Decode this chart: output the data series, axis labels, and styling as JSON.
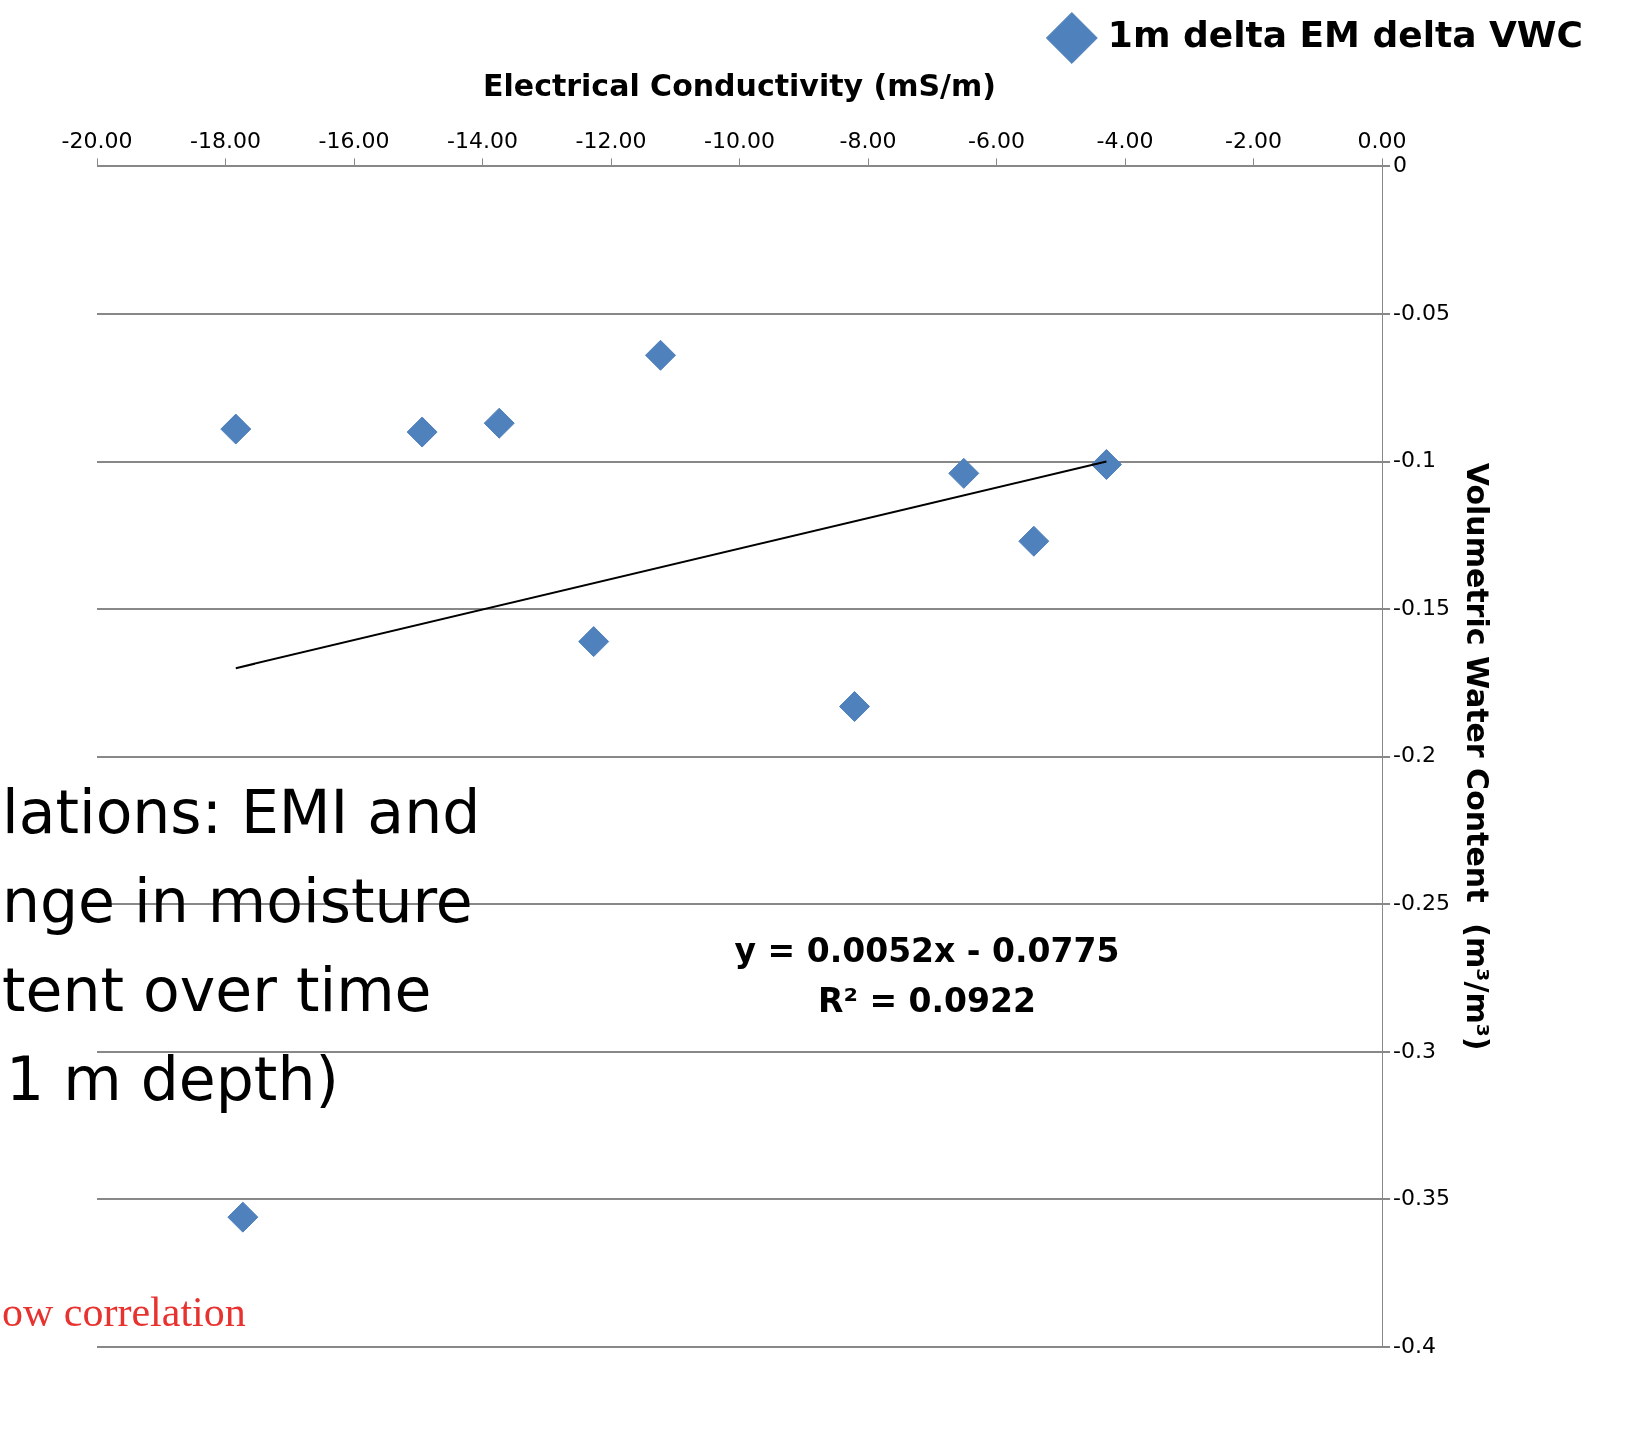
{
  "chart_data": {
    "type": "scatter",
    "xlabel": "Electrical Conductivity (mS/m)",
    "ylabel": "Volumetric Water Content  (m³/m³)",
    "xlim": [
      -20,
      0
    ],
    "xticks": [
      {
        "value": -20,
        "label": "-20.00"
      },
      {
        "value": -18,
        "label": "-18.00"
      },
      {
        "value": -16,
        "label": "-16.00"
      },
      {
        "value": -14,
        "label": "-14.00"
      },
      {
        "value": -12,
        "label": "-12.00"
      },
      {
        "value": -10,
        "label": "-10.00"
      },
      {
        "value": -8,
        "label": "-8.00"
      },
      {
        "value": -6,
        "label": "-6.00"
      },
      {
        "value": -4,
        "label": "-4.00"
      },
      {
        "value": -2,
        "label": "-2.00"
      },
      {
        "value": 0,
        "label": "0.00"
      }
    ],
    "ylim": [
      -0.4,
      0
    ],
    "yticks": [
      -0.4,
      -0.35,
      -0.3,
      -0.25,
      -0.2,
      -0.15,
      -0.1,
      -0.05,
      0
    ],
    "grid": "y",
    "legend": "top right",
    "marker": "diamond",
    "series": [
      {
        "name": "1m delta EM delta VWC",
        "color": "#4f81bd",
        "x": [
          -17.84,
          -14.94,
          -13.74,
          -11.23,
          -12.27,
          -8.21,
          -6.51,
          -5.42,
          -4.29,
          -17.73
        ],
        "values": [
          -0.089,
          -0.09,
          -0.087,
          -0.064,
          -0.161,
          -0.183,
          -0.104,
          -0.127,
          -0.101,
          -0.356
        ]
      },
      {
        "type": "line",
        "marker": "none",
        "color": "#000000",
        "x": [
          -17.84,
          -4.29
        ],
        "values": [
          -0.17,
          -0.1
        ]
      }
    ],
    "annotations": [
      "y = 0.0052x - 0.0775",
      "R² = 0.0922",
      "lations: EMI and",
      "nge in moisture",
      "tent over time",
      "1 m depth)",
      "ow correlation"
    ]
  }
}
